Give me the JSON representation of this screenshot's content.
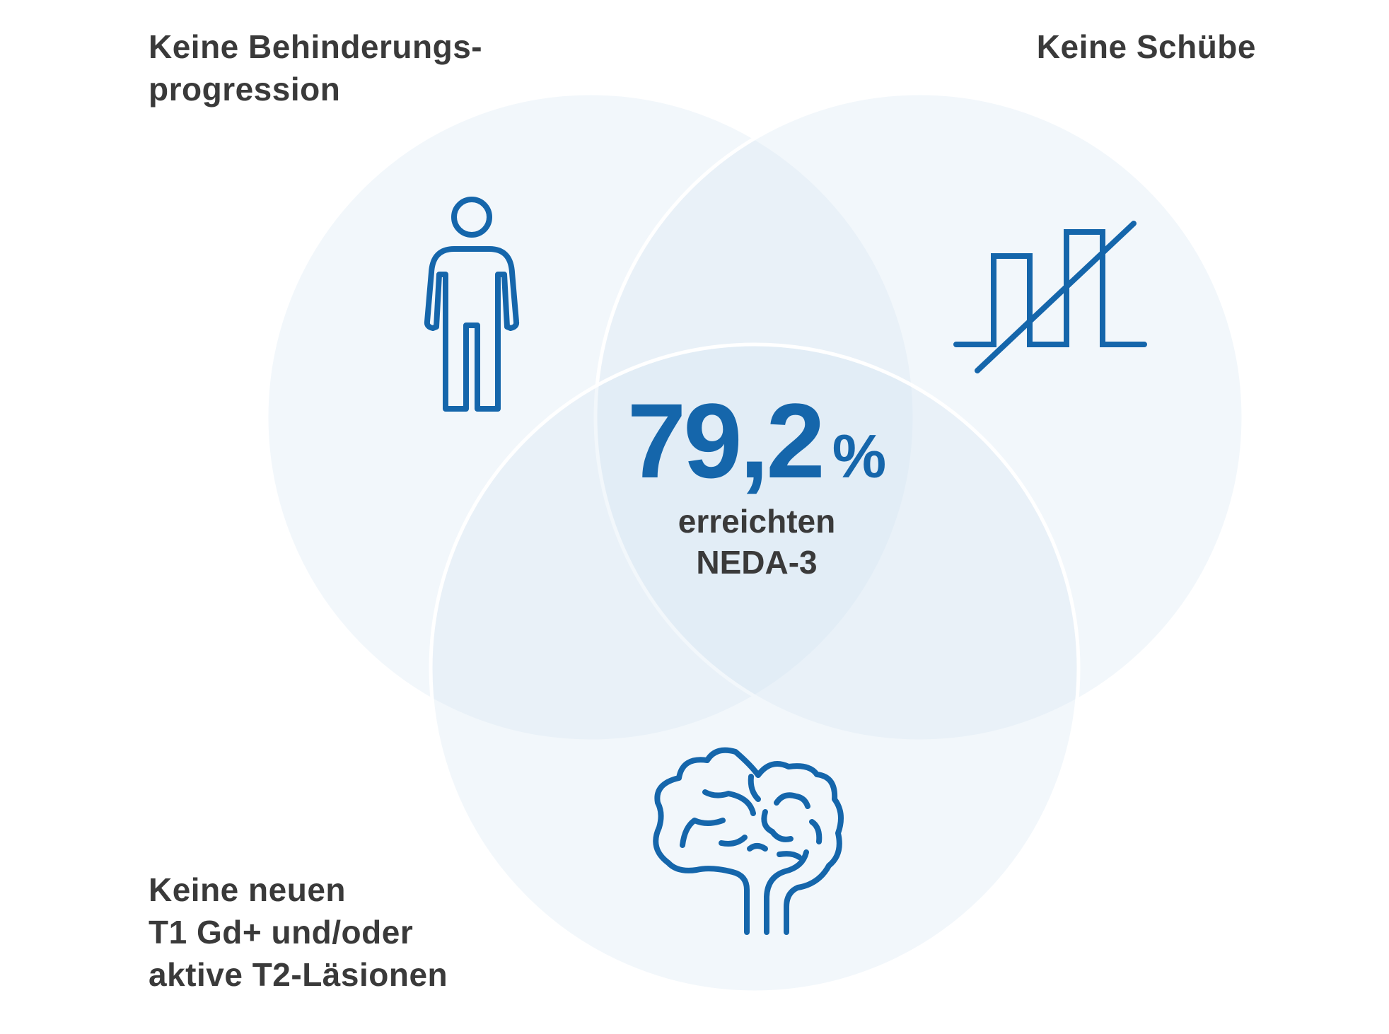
{
  "labels": {
    "top_left": [
      "Keine Behinderungs-",
      "progression"
    ],
    "top_right": [
      "Keine Schübe"
    ],
    "bottom_left": [
      "Keine neuen",
      "T1 Gd+ und/oder",
      "aktive T2-Läsionen"
    ]
  },
  "center": {
    "value": "79,2",
    "unit": "%",
    "caption": [
      "erreichten",
      "NEDA-3"
    ]
  },
  "icons": {
    "top_left": "person-icon",
    "top_right": "relapse-crossed-icon",
    "bottom": "brain-icon"
  },
  "colors": {
    "accent": "#1566ab",
    "text": "#3a3a3a",
    "circle_fill": "#eaf2f8",
    "circle_stroke": "#ffffff"
  }
}
